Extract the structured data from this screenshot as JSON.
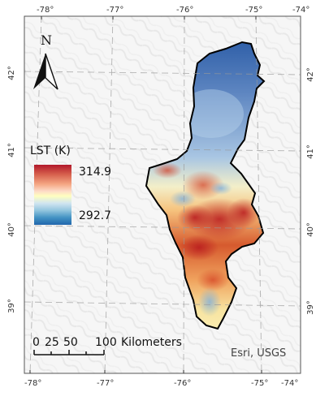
{
  "legend": {
    "title": "LST (K)",
    "max_label": "314.9",
    "min_label": "292.7",
    "ramp_colors": [
      "#b2182b",
      "#f4a582",
      "#ffffbf",
      "#92c5de",
      "#2166ac"
    ]
  },
  "north_arrow": {
    "letter": "N",
    "icon": "north-arrow-icon"
  },
  "scale_bar": {
    "labels": [
      "0",
      "25",
      "50",
      "100"
    ],
    "unit": "Kilometers"
  },
  "credit": "Esri, USGS",
  "graticule": {
    "longitude_labels": [
      "-78°",
      "-77°",
      "-76°",
      "-75°",
      "-74°"
    ],
    "latitude_labels": [
      "42°",
      "41°",
      "40°",
      "39°"
    ]
  },
  "colors": {
    "hot": "#c0392b",
    "cold": "#2c5aa0",
    "boundary": "#000000",
    "hillshade": "#ececec"
  }
}
